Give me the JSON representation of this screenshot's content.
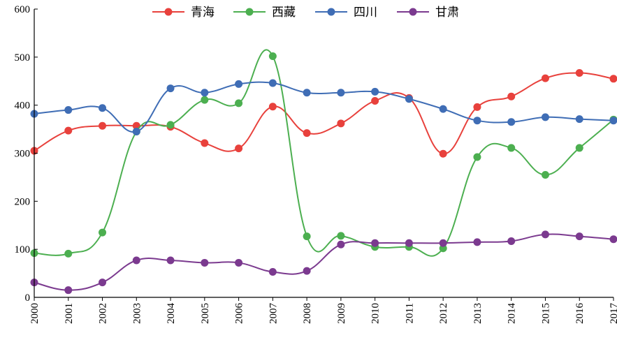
{
  "chart_data": {
    "type": "line",
    "x": [
      "2000",
      "2001",
      "2002",
      "2003",
      "2004",
      "2005",
      "2006",
      "2007",
      "2008",
      "2009",
      "2010",
      "2011",
      "2012",
      "2013",
      "2014",
      "2015",
      "2016",
      "2017"
    ],
    "ylim": [
      0,
      600
    ],
    "yticks": [
      "0",
      "100",
      "200",
      "300",
      "400",
      "500",
      "600"
    ],
    "legend_position": "top-center",
    "grid": false,
    "smooth": true,
    "series": [
      {
        "name": "青海",
        "color": "#e8413c",
        "values": [
          305,
          347,
          357,
          357,
          355,
          321,
          310,
          397,
          342,
          362,
          409,
          415,
          299,
          396,
          418,
          456,
          467,
          455
        ]
      },
      {
        "name": "西藏",
        "color": "#4caf50",
        "values": [
          92,
          91,
          135,
          345,
          359,
          411,
          404,
          502,
          127,
          128,
          105,
          105,
          102,
          292,
          311,
          255,
          311,
          370
        ]
      },
      {
        "name": "四川",
        "color": "#3f6db5",
        "values": [
          382,
          390,
          394,
          345,
          435,
          426,
          444,
          446,
          426,
          426,
          428,
          413,
          392,
          368,
          365,
          375,
          371,
          368
        ]
      },
      {
        "name": "甘肃",
        "color": "#7b3a8f",
        "values": [
          31,
          15,
          31,
          77,
          77,
          72,
          72,
          53,
          55,
          110,
          113,
          113,
          113,
          115,
          117,
          131,
          127,
          121
        ]
      }
    ]
  }
}
